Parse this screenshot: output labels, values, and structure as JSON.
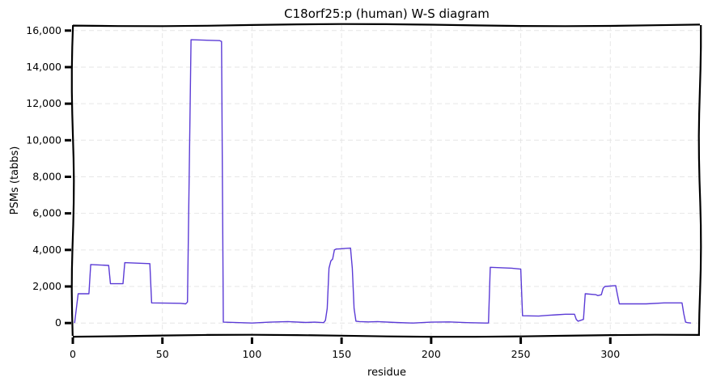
{
  "chart_data": {
    "type": "line",
    "title": "C18orf25:p (human) W-S diagram",
    "xlabel": "residue",
    "ylabel": "PSMs (tabbs)",
    "xlim": [
      0,
      350
    ],
    "ylim": [
      -700,
      16300
    ],
    "xticks": [
      0,
      50,
      100,
      150,
      200,
      250,
      300
    ],
    "xtick_labels": [
      "0",
      "50",
      "100",
      "150",
      "200",
      "250",
      "300"
    ],
    "yticks": [
      0,
      2000,
      4000,
      6000,
      8000,
      10000,
      12000,
      14000,
      16000
    ],
    "ytick_labels": [
      "0",
      "2,000",
      "4,000",
      "6,000",
      "8,000",
      "10,000",
      "12,000",
      "14,000",
      "16,000"
    ],
    "grid": true,
    "colors": {
      "line": "#5b3bd6"
    },
    "series": [
      {
        "x": [
          1,
          2,
          3,
          9,
          10,
          20,
          21,
          28,
          29,
          43,
          44,
          60,
          63,
          64,
          66,
          82,
          83,
          84,
          100,
          110,
          120,
          130,
          135,
          140,
          141,
          142,
          143,
          144,
          145,
          146,
          147,
          148,
          155,
          156,
          157,
          158,
          160,
          165,
          170,
          180,
          190,
          200,
          210,
          220,
          230,
          232,
          233,
          245,
          250,
          251,
          260,
          265,
          270,
          275,
          280,
          281,
          282,
          285,
          286,
          292,
          293,
          295,
          296,
          297,
          303,
          304,
          305,
          320,
          330,
          335,
          340,
          341,
          342,
          343,
          345
        ],
        "values": [
          0,
          800,
          1600,
          1600,
          3200,
          3150,
          2150,
          2150,
          3300,
          3250,
          1100,
          1080,
          1050,
          1150,
          15500,
          15450,
          15400,
          50,
          0,
          50,
          80,
          30,
          50,
          20,
          150,
          800,
          3000,
          3400,
          3500,
          4000,
          4050,
          4050,
          4100,
          3000,
          800,
          100,
          80,
          60,
          80,
          30,
          0,
          50,
          60,
          20,
          0,
          0,
          3050,
          3000,
          2950,
          400,
          380,
          420,
          450,
          480,
          480,
          200,
          100,
          200,
          1600,
          1550,
          1500,
          1550,
          1900,
          2000,
          2050,
          1550,
          1050,
          1050,
          1100,
          1100,
          1100,
          500,
          50,
          20,
          0
        ]
      }
    ]
  }
}
